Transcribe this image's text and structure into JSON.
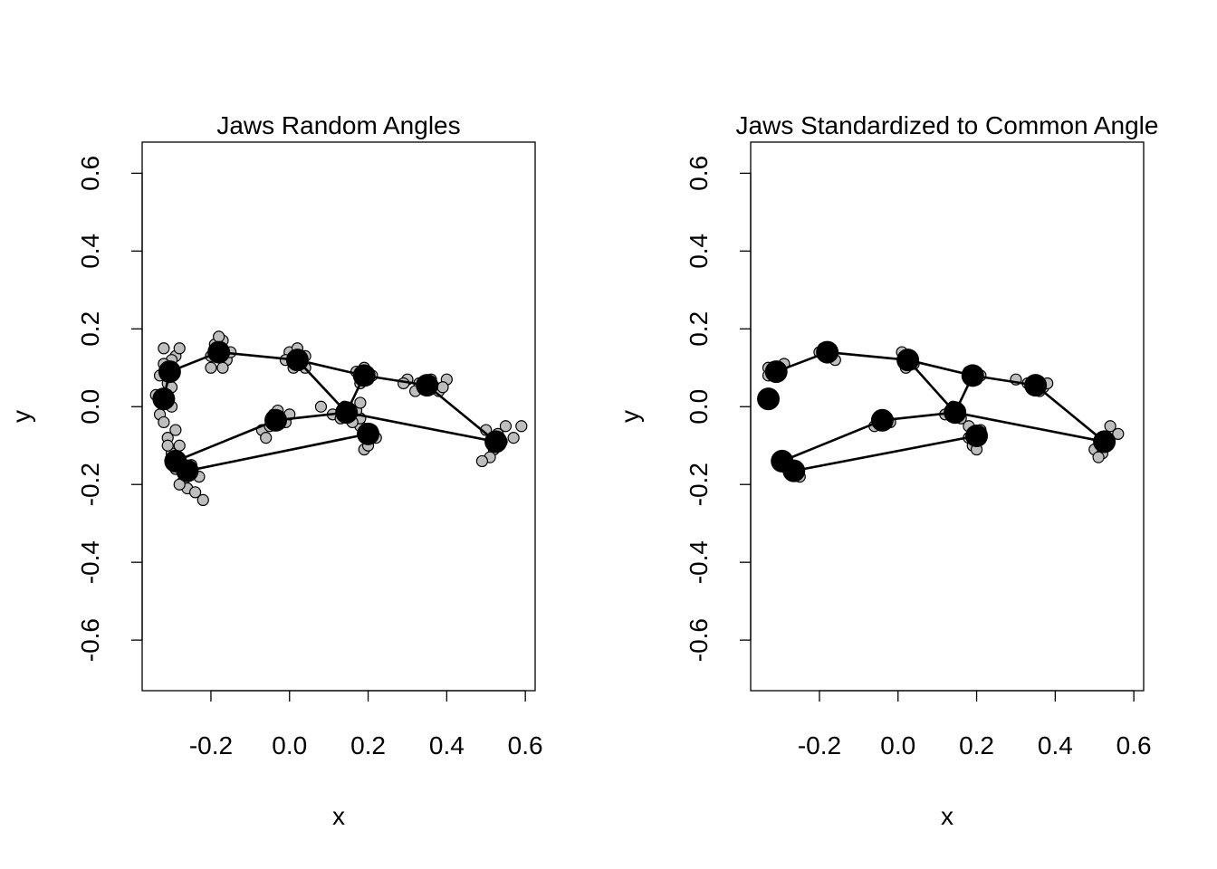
{
  "chart_data": [
    {
      "type": "scatter",
      "title": "Jaws Random Angles",
      "xlabel": "x",
      "ylabel": "y",
      "xlim": [
        -0.375,
        0.625
      ],
      "ylim": [
        -0.73,
        0.68
      ],
      "x_ticks": [
        -0.2,
        0.0,
        0.2,
        0.4,
        0.6
      ],
      "x_tick_labels": [
        "-0.2",
        "0.0",
        "0.2",
        "0.4",
        "0.6"
      ],
      "y_ticks": [
        -0.6,
        -0.4,
        -0.2,
        0.0,
        0.2,
        0.4,
        0.6
      ],
      "y_tick_labels": [
        "-0.6",
        "-0.4",
        "-0.2",
        "0.0",
        "0.2",
        "0.4",
        "0.6"
      ],
      "grid": false,
      "legend": "none",
      "mean_shape": [
        [
          -0.32,
          0.02
        ],
        [
          -0.305,
          0.09
        ],
        [
          -0.18,
          0.14
        ],
        [
          0.02,
          0.12
        ],
        [
          0.19,
          0.08
        ],
        [
          0.35,
          0.055
        ],
        [
          0.525,
          -0.09
        ],
        [
          0.2,
          -0.07
        ],
        [
          -0.26,
          -0.165
        ],
        [
          -0.29,
          -0.14
        ],
        [
          -0.035,
          -0.035
        ],
        [
          0.145,
          -0.015
        ]
      ],
      "links": [
        [
          0,
          1
        ],
        [
          1,
          2
        ],
        [
          2,
          3
        ],
        [
          3,
          4
        ],
        [
          4,
          5
        ],
        [
          5,
          6
        ],
        [
          6,
          11
        ],
        [
          11,
          10
        ],
        [
          10,
          9
        ],
        [
          9,
          8
        ],
        [
          8,
          7
        ],
        [
          3,
          11
        ],
        [
          11,
          4
        ]
      ],
      "specimen_points": [
        [
          -0.34,
          0.03
        ],
        [
          -0.33,
          -0.02
        ],
        [
          -0.31,
          0.06
        ],
        [
          -0.33,
          0.08
        ],
        [
          -0.32,
          -0.04
        ],
        [
          -0.3,
          0.0
        ],
        [
          -0.31,
          0.1
        ],
        [
          -0.29,
          0.13
        ],
        [
          -0.32,
          0.15
        ],
        [
          -0.28,
          0.15
        ],
        [
          -0.3,
          0.12
        ],
        [
          -0.32,
          0.11
        ],
        [
          -0.3,
          0.05
        ],
        [
          -0.2,
          0.1
        ],
        [
          -0.17,
          0.17
        ],
        [
          -0.16,
          0.12
        ],
        [
          -0.19,
          0.16
        ],
        [
          -0.17,
          0.1
        ],
        [
          -0.15,
          0.14
        ],
        [
          -0.2,
          0.13
        ],
        [
          -0.18,
          0.18
        ],
        [
          0.0,
          0.14
        ],
        [
          0.04,
          0.13
        ],
        [
          0.01,
          0.1
        ],
        [
          0.03,
          0.11
        ],
        [
          0.02,
          0.15
        ],
        [
          -0.01,
          0.12
        ],
        [
          0.04,
          0.1
        ],
        [
          0.17,
          0.09
        ],
        [
          0.2,
          0.07
        ],
        [
          0.19,
          0.1
        ],
        [
          0.21,
          0.08
        ],
        [
          0.18,
          0.06
        ],
        [
          0.3,
          0.07
        ],
        [
          0.33,
          0.06
        ],
        [
          0.37,
          0.05
        ],
        [
          0.4,
          0.07
        ],
        [
          0.38,
          0.04
        ],
        [
          0.29,
          0.06
        ],
        [
          0.32,
          0.04
        ],
        [
          0.36,
          0.07
        ],
        [
          0.39,
          0.05
        ],
        [
          0.5,
          -0.06
        ],
        [
          0.53,
          -0.07
        ],
        [
          0.55,
          -0.05
        ],
        [
          0.57,
          -0.08
        ],
        [
          0.59,
          -0.05
        ],
        [
          0.52,
          -0.11
        ],
        [
          0.51,
          -0.13
        ],
        [
          0.49,
          -0.14
        ],
        [
          0.54,
          -0.09
        ],
        [
          0.18,
          -0.05
        ],
        [
          0.2,
          -0.09
        ],
        [
          0.21,
          -0.06
        ],
        [
          0.19,
          -0.11
        ],
        [
          0.22,
          -0.08
        ],
        [
          0.18,
          -0.03
        ],
        [
          0.2,
          -0.1
        ],
        [
          0.08,
          -0.0
        ],
        [
          0.11,
          -0.02
        ],
        [
          0.16,
          -0.04
        ],
        [
          0.13,
          -0.03
        ],
        [
          0.17,
          -0.01
        ],
        [
          0.18,
          0.01
        ],
        [
          0.14,
          0.0
        ],
        [
          -0.07,
          -0.06
        ],
        [
          -0.04,
          -0.02
        ],
        [
          -0.01,
          -0.04
        ],
        [
          -0.06,
          -0.08
        ],
        [
          -0.03,
          -0.01
        ],
        [
          0.0,
          -0.02
        ],
        [
          -0.05,
          -0.05
        ],
        [
          -0.31,
          -0.08
        ],
        [
          -0.3,
          -0.12
        ],
        [
          -0.28,
          -0.1
        ],
        [
          -0.29,
          -0.16
        ],
        [
          -0.27,
          -0.19
        ],
        [
          -0.26,
          -0.21
        ],
        [
          -0.24,
          -0.22
        ],
        [
          -0.22,
          -0.24
        ],
        [
          -0.25,
          -0.15
        ],
        [
          -0.28,
          -0.2
        ],
        [
          -0.23,
          -0.18
        ],
        [
          -0.31,
          -0.1
        ],
        [
          -0.29,
          -0.06
        ]
      ]
    },
    {
      "type": "scatter",
      "title": "Jaws Standardized to Common Angle",
      "xlabel": "x",
      "ylabel": "y",
      "xlim": [
        -0.375,
        0.625
      ],
      "ylim": [
        -0.73,
        0.68
      ],
      "x_ticks": [
        -0.2,
        0.0,
        0.2,
        0.4,
        0.6
      ],
      "x_tick_labels": [
        "-0.2",
        "0.0",
        "0.2",
        "0.4",
        "0.6"
      ],
      "y_ticks": [
        -0.6,
        -0.4,
        -0.2,
        0.0,
        0.2,
        0.4,
        0.6
      ],
      "y_tick_labels": [
        "-0.6",
        "-0.4",
        "-0.2",
        "0.0",
        "0.2",
        "0.4",
        "0.6"
      ],
      "grid": false,
      "legend": "none",
      "mean_shape": [
        [
          -0.33,
          0.02
        ],
        [
          -0.31,
          0.09
        ],
        [
          -0.18,
          0.14
        ],
        [
          0.025,
          0.12
        ],
        [
          0.19,
          0.08
        ],
        [
          0.35,
          0.055
        ],
        [
          0.525,
          -0.09
        ],
        [
          0.2,
          -0.075
        ],
        [
          -0.265,
          -0.165
        ],
        [
          -0.295,
          -0.14
        ],
        [
          -0.04,
          -0.035
        ],
        [
          0.145,
          -0.015
        ]
      ],
      "links": [
        [
          1,
          2
        ],
        [
          2,
          3
        ],
        [
          3,
          4
        ],
        [
          4,
          5
        ],
        [
          5,
          6
        ],
        [
          6,
          11
        ],
        [
          11,
          10
        ],
        [
          10,
          9
        ],
        [
          9,
          8
        ],
        [
          8,
          7
        ],
        [
          3,
          11
        ],
        [
          11,
          4
        ]
      ],
      "specimen_points": [
        [
          -0.33,
          0.1
        ],
        [
          -0.29,
          0.11
        ],
        [
          -0.33,
          0.08
        ],
        [
          -0.19,
          0.15
        ],
        [
          -0.17,
          0.13
        ],
        [
          -0.16,
          0.12
        ],
        [
          -0.2,
          0.14
        ],
        [
          0.01,
          0.14
        ],
        [
          0.04,
          0.11
        ],
        [
          0.02,
          0.1
        ],
        [
          0.18,
          0.09
        ],
        [
          0.2,
          0.07
        ],
        [
          0.21,
          0.08
        ],
        [
          0.3,
          0.07
        ],
        [
          0.33,
          0.06
        ],
        [
          0.37,
          0.05
        ],
        [
          0.38,
          0.06
        ],
        [
          0.36,
          0.04
        ],
        [
          0.5,
          -0.11
        ],
        [
          0.52,
          -0.12
        ],
        [
          0.54,
          -0.05
        ],
        [
          0.56,
          -0.07
        ],
        [
          0.51,
          -0.13
        ],
        [
          0.18,
          -0.05
        ],
        [
          0.21,
          -0.06
        ],
        [
          0.19,
          -0.1
        ],
        [
          0.2,
          -0.11
        ],
        [
          0.18,
          -0.08
        ],
        [
          0.12,
          -0.02
        ],
        [
          0.16,
          -0.03
        ],
        [
          0.14,
          0.0
        ],
        [
          -0.06,
          -0.05
        ],
        [
          -0.03,
          -0.03
        ],
        [
          -0.02,
          -0.04
        ],
        [
          -0.05,
          -0.04
        ],
        [
          -0.3,
          -0.14
        ],
        [
          -0.25,
          -0.18
        ],
        [
          -0.28,
          -0.16
        ],
        [
          -0.27,
          -0.17
        ]
      ]
    }
  ]
}
